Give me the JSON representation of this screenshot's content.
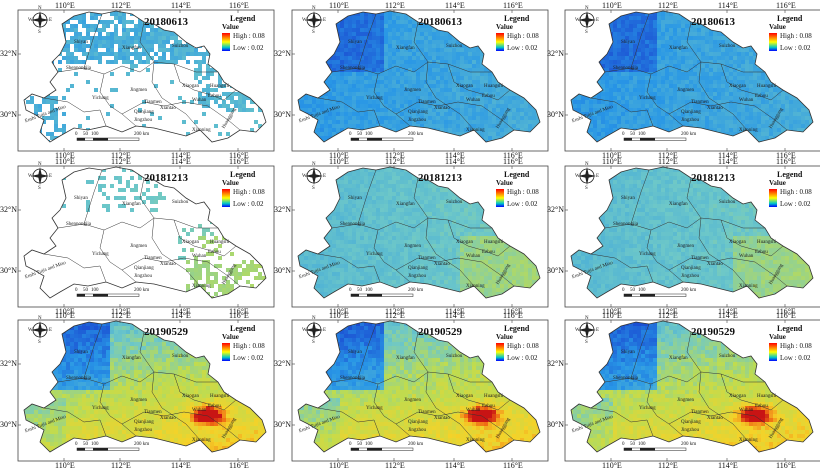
{
  "panels": [
    {
      "date": "20180613",
      "scheme": "sparse"
    },
    {
      "date": "20180613",
      "scheme": "blue"
    },
    {
      "date": "20180613",
      "scheme": "blue"
    },
    {
      "date": "20181213",
      "scheme": "sparse-green"
    },
    {
      "date": "20181213",
      "scheme": "green"
    },
    {
      "date": "20181213",
      "scheme": "green"
    },
    {
      "date": "20190529",
      "scheme": "hot"
    },
    {
      "date": "20190529",
      "scheme": "hot"
    },
    {
      "date": "20190529",
      "scheme": "hot"
    }
  ],
  "longitudes": [
    "110°E",
    "112°E",
    "114°E",
    "116°E"
  ],
  "latitudes": [
    "32°N",
    "30°N"
  ],
  "legend": {
    "title": "Legend",
    "subtitle": "Value",
    "high": "High : 0.08",
    "low": "Low : 0.02"
  },
  "scale": {
    "ticks": [
      "0",
      "50",
      "100",
      "200 km"
    ]
  },
  "compass": {
    "n": "N",
    "s": "S",
    "e": "E",
    "w": "W"
  },
  "cities": [
    "Shiyan",
    "Xiangfan",
    "Suizhou",
    "Yichang",
    "Jingmen",
    "Xiaogan",
    "Enshi Tujia and Miao",
    "Tianmen",
    "Qianjiang",
    "Xiantao",
    "Wuhan",
    "Ezhou",
    "Huanggang",
    "Jingzhou",
    "Xianning",
    "Shennongjia",
    "Huangshi"
  ],
  "colors": {
    "high": "#ff0000",
    "mid": "#ffff00",
    "low": "#0000ff",
    "boundary": "#333333"
  }
}
